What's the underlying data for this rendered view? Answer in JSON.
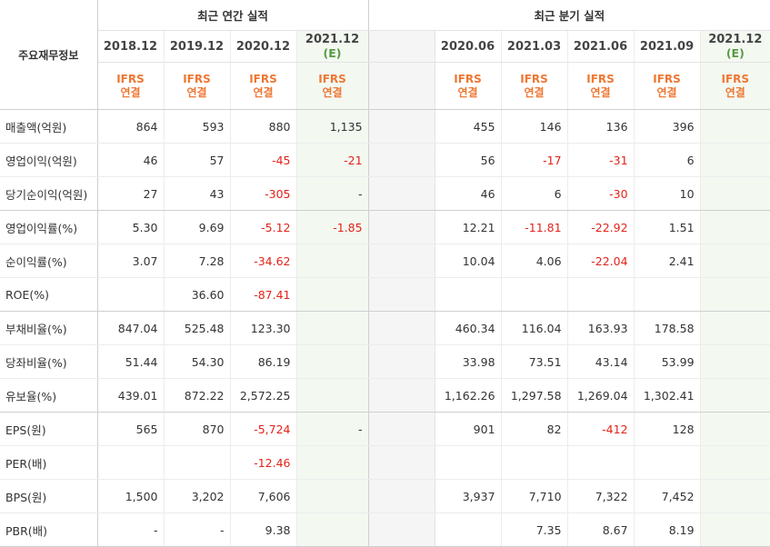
{
  "header": {
    "label_col": "주요재무정보",
    "annual_title": "최근 연간 실적",
    "quarter_title": "최근 분기 실적",
    "annual_periods": [
      "2018.12",
      "2019.12",
      "2020.12",
      "2021.12"
    ],
    "annual_est_suffix": "(E)",
    "quarter_periods": [
      "2020.06",
      "2021.03",
      "2021.06",
      "2021.09",
      "2021.12"
    ],
    "quarter_est_suffix": "(E)",
    "ifrs_line1": "IFRS",
    "ifrs_line2": "연결"
  },
  "rows": [
    {
      "label": "매출액(억원)",
      "annual": [
        "864",
        "593",
        "880",
        "1,135"
      ],
      "quarter": [
        "455",
        "146",
        "136",
        "396",
        ""
      ]
    },
    {
      "label": "영업이익(억원)",
      "annual": [
        "46",
        "57",
        "-45",
        "-21"
      ],
      "quarter": [
        "56",
        "-17",
        "-31",
        "6",
        ""
      ]
    },
    {
      "label": "당기순이익(억원)",
      "annual": [
        "27",
        "43",
        "-305",
        "-"
      ],
      "quarter": [
        "46",
        "6",
        "-30",
        "10",
        ""
      ]
    },
    {
      "label": "영업이익률(%)",
      "annual": [
        "5.30",
        "9.69",
        "-5.12",
        "-1.85"
      ],
      "quarter": [
        "12.21",
        "-11.81",
        "-22.92",
        "1.51",
        ""
      ]
    },
    {
      "label": "순이익률(%)",
      "annual": [
        "3.07",
        "7.28",
        "-34.62",
        ""
      ],
      "quarter": [
        "10.04",
        "4.06",
        "-22.04",
        "2.41",
        ""
      ]
    },
    {
      "label": "ROE(%)",
      "annual": [
        "",
        "36.60",
        "-87.41",
        ""
      ],
      "quarter": [
        "",
        "",
        "",
        "",
        ""
      ]
    },
    {
      "label": "부채비율(%)",
      "annual": [
        "847.04",
        "525.48",
        "123.30",
        ""
      ],
      "quarter": [
        "460.34",
        "116.04",
        "163.93",
        "178.58",
        ""
      ]
    },
    {
      "label": "당좌비율(%)",
      "annual": [
        "51.44",
        "54.30",
        "86.19",
        ""
      ],
      "quarter": [
        "33.98",
        "73.51",
        "43.14",
        "53.99",
        ""
      ]
    },
    {
      "label": "유보율(%)",
      "annual": [
        "439.01",
        "872.22",
        "2,572.25",
        ""
      ],
      "quarter": [
        "1,162.26",
        "1,297.58",
        "1,269.04",
        "1,302.41",
        ""
      ]
    },
    {
      "label": "EPS(원)",
      "annual": [
        "565",
        "870",
        "-5,724",
        "-"
      ],
      "quarter": [
        "901",
        "82",
        "-412",
        "128",
        ""
      ]
    },
    {
      "label": "PER(배)",
      "annual": [
        "",
        "",
        "-12.46",
        ""
      ],
      "quarter": [
        "",
        "",
        "",
        "",
        ""
      ]
    },
    {
      "label": "BPS(원)",
      "annual": [
        "1,500",
        "3,202",
        "7,606",
        ""
      ],
      "quarter": [
        "3,937",
        "7,710",
        "7,322",
        "7,452",
        ""
      ]
    },
    {
      "label": "PBR(배)",
      "annual": [
        "-",
        "-",
        "9.38",
        ""
      ],
      "quarter": [
        "",
        "7.35",
        "8.67",
        "8.19",
        ""
      ]
    }
  ],
  "colors": {
    "negative": "#e2231a",
    "ifrs": "#ee7733",
    "estimate_bg": "#f3f8f1",
    "estimate_text": "#5a9a45"
  }
}
